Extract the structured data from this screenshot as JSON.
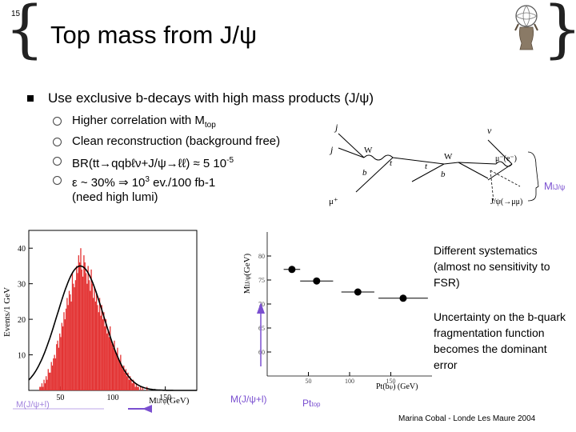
{
  "slide": {
    "number": "15",
    "title": "Top mass from J/ψ",
    "footer": "Marina Cobal - Londe Les Maure 2004"
  },
  "bullets": {
    "main": "Use exclusive b-decays with high mass products (J/ψ)",
    "sub": [
      "Higher correlation with M",
      "Clean reconstruction (background free)",
      "BR(tt→qqbℓν+J/ψ→ℓℓ) ≈ 5 10",
      "ε ~ 30% ⇒ 10",
      "(need high lumi)"
    ],
    "sub_suffix": {
      "mtop_sub": "top",
      "br_sup": "-5",
      "eff_sup": "3",
      "eff_tail": " ev./100 fb-1"
    }
  },
  "diagram": {
    "labels": [
      "j",
      "j",
      "W",
      "t",
      "b",
      "t",
      "b",
      "W",
      "ν",
      "μ⁻(e⁻)",
      "J/ψ(→μμ)",
      "μ⁺"
    ],
    "mass_label": "M",
    "mass_label_sub": "lJ/ψ"
  },
  "side_notes": {
    "systematics": "Different systematics (almost no sensitivity to FSR)",
    "uncertainty": "Uncertainty on the b-quark fragmentation function becomes the dominant error"
  },
  "hist_plot": {
    "ylabel": "Events/1 GeV",
    "xlabel": "M",
    "xlabel_sub": "lJ/ψ",
    "xlabel_unit": "(GeV)",
    "bottom_label": "M(J/ψ+l)",
    "yticks": [
      "40",
      "30",
      "20",
      "10"
    ],
    "xticks": [
      "50",
      "100",
      "150"
    ]
  },
  "scatter_plot": {
    "ylabel": "M",
    "ylabel_sub": "lJ/ψ",
    "ylabel_unit": "(GeV)",
    "xlabel": "Pt(b",
    "xlabel_sub": "ψ",
    "xlabel_tail": ") (GeV)",
    "mid_label": "M(J/ψ+l)",
    "bottom_label": "Pt",
    "bottom_label_sub": "top",
    "yticks": [
      "80",
      "75",
      "70",
      "65",
      "60"
    ],
    "xticks": [
      "50",
      "100",
      "150"
    ]
  },
  "chart_data": [
    {
      "type": "bar",
      "title": "",
      "xlabel": "M_lJ/ψ (GeV)",
      "ylabel": "Events/1 GeV",
      "xlim": [
        20,
        180
      ],
      "ylim": [
        0,
        45
      ],
      "bin_width": 1,
      "bin_start": 20,
      "values": [
        0,
        0,
        0,
        0,
        0,
        0,
        0,
        0,
        0,
        0,
        1,
        1,
        2,
        1,
        3,
        2,
        4,
        3,
        6,
        5,
        5,
        8,
        7,
        9,
        10,
        9,
        13,
        14,
        12,
        16,
        15,
        19,
        18,
        22,
        20,
        23,
        26,
        24,
        28,
        27,
        25,
        33,
        30,
        29,
        31,
        35,
        33,
        38,
        36,
        40,
        34,
        32,
        38,
        36,
        33,
        30,
        35,
        31,
        28,
        34,
        30,
        26,
        29,
        25,
        27,
        24,
        22,
        26,
        21,
        24,
        20,
        22,
        18,
        20,
        16,
        17,
        15,
        18,
        14,
        13,
        12,
        14,
        11,
        10,
        12,
        9,
        8,
        10,
        7,
        6,
        7,
        5,
        6,
        4,
        5,
        3,
        4,
        3,
        2,
        3,
        2,
        1,
        2,
        1,
        1,
        0,
        1,
        0,
        1,
        0,
        0,
        0,
        1,
        0,
        0,
        0
      ],
      "fit_curve": true
    },
    {
      "type": "scatter",
      "title": "",
      "xlabel": "Pt(b_ψ) (GeV)",
      "ylabel": "M_lJ/ψ (GeV)",
      "xlim": [
        0,
        200
      ],
      "ylim": [
        55,
        85
      ],
      "points": [
        {
          "x": 30,
          "y": 77.2,
          "xerr": 10,
          "yerr": 0.4
        },
        {
          "x": 60,
          "y": 74.8,
          "xerr": 20,
          "yerr": 0.4
        },
        {
          "x": 110,
          "y": 72.5,
          "xerr": 20,
          "yerr": 0.4
        },
        {
          "x": 165,
          "y": 71.2,
          "xerr": 30,
          "yerr": 0.5
        }
      ]
    }
  ]
}
